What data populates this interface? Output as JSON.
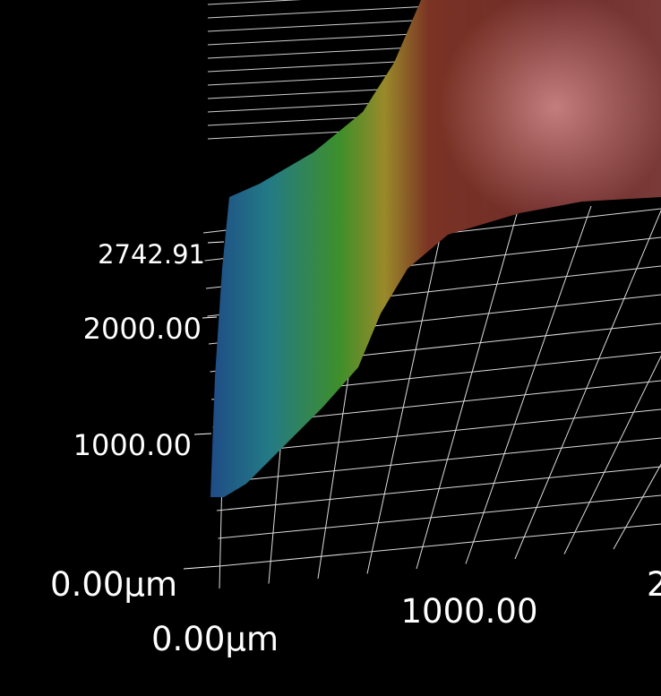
{
  "chart_data": {
    "type": "surface",
    "title": "",
    "unit": "µm",
    "z_axis": {
      "ticks": [
        "1000.00",
        "2000.00",
        "2742.91"
      ],
      "max": 2742.91
    },
    "x_axis": {
      "ticks": [
        "0.00µm",
        "1000.00",
        "2"
      ]
    },
    "y_axis": {
      "ticks": [
        "0.00µm"
      ]
    },
    "colormap": [
      "#1f4f86",
      "#237a86",
      "#3e8f2a",
      "#9a8a2a",
      "#7a3324",
      "#6a2828",
      "#e8a0a0"
    ],
    "background": "#000000",
    "grid": true
  }
}
